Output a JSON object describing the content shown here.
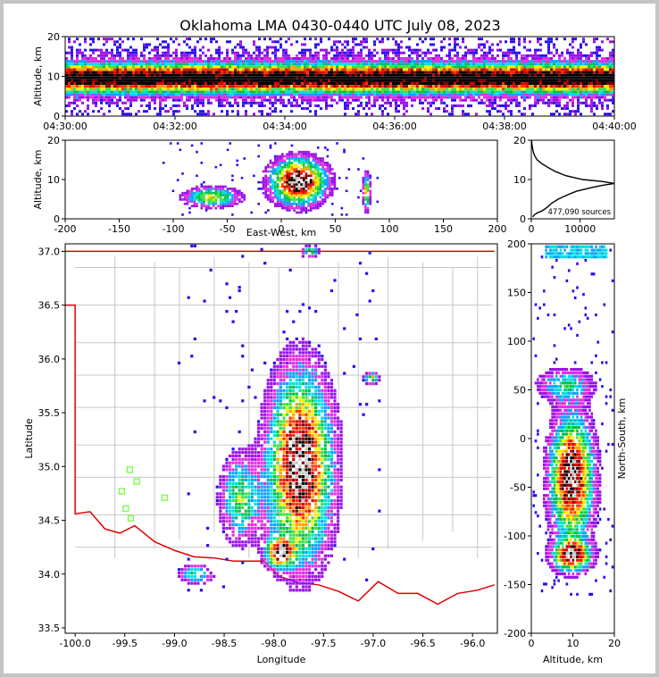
{
  "chart_data": {
    "type": "scatter",
    "title": "Oklahoma LMA 0430-0440 UTC July 08, 2023",
    "colormap": [
      "#2a0ff0",
      "#9a12e8",
      "#e030e0",
      "#12a0ff",
      "#00e0e0",
      "#00c050",
      "#40e040",
      "#f0f000",
      "#ffa000",
      "#ff3000",
      "#e00000",
      "#800000",
      "#000000",
      "#c8c8c8"
    ],
    "time_height": {
      "xlabel": "",
      "ylabel": "Altitude, km",
      "xticks": [
        "04:30:00",
        "04:32:00",
        "04:34:00",
        "04:36:00",
        "04:38:00",
        "04:40:00"
      ],
      "ylim": [
        0,
        20
      ],
      "yticks": [
        0,
        10,
        20
      ]
    },
    "east_west_height": {
      "xlabel": "East-West, km",
      "ylabel": "Altitude, km",
      "xlim": [
        -200,
        200
      ],
      "xticks": [
        -200,
        -150,
        -100,
        -50,
        0,
        50,
        100,
        150,
        200
      ],
      "ylim": [
        0,
        20
      ],
      "yticks": [
        0,
        10,
        20
      ]
    },
    "altitude_histogram": {
      "xlim": [
        0,
        17000
      ],
      "xticks": [
        0,
        10000
      ],
      "ylim": [
        0,
        20
      ],
      "yticks": [
        0,
        10,
        20
      ],
      "sources_label": "477,090 sources",
      "profile": {
        "altitude_km": [
          0.5,
          1.0,
          1.5,
          2.0,
          3.0,
          4.0,
          5.0,
          6.0,
          7.0,
          8.0,
          8.5,
          9.0,
          9.5,
          10.0,
          11.0,
          12.0,
          13.0,
          14.0,
          15.0,
          16.0,
          17.0,
          18.0,
          19.0,
          20.0
        ],
        "count": [
          300,
          600,
          1200,
          2200,
          3300,
          4200,
          5500,
          7200,
          9200,
          12500,
          14500,
          17000,
          14500,
          10500,
          7000,
          5000,
          3500,
          2200,
          1200,
          700,
          400,
          250,
          120,
          40
        ]
      }
    },
    "plan_view": {
      "xlabel": "Longitude",
      "ylabel": "Latitude",
      "xlim": [
        -100.1,
        -95.75
      ],
      "xticks": [
        -100.0,
        -99.5,
        -99.0,
        -98.5,
        -98.0,
        -97.5,
        -97.0,
        -96.5,
        -96.0
      ],
      "ylim": [
        33.45,
        37.07
      ],
      "yticks": [
        33.5,
        34.0,
        34.5,
        35.0,
        35.5,
        36.0,
        36.5,
        37.0
      ],
      "stations": [
        {
          "lon": -99.45,
          "lat": 34.97
        },
        {
          "lon": -99.38,
          "lat": 34.86
        },
        {
          "lon": -99.53,
          "lat": 34.77
        },
        {
          "lon": -99.49,
          "lat": 34.61
        },
        {
          "lon": -99.44,
          "lat": 34.52
        },
        {
          "lon": -99.1,
          "lat": 34.71
        }
      ]
    },
    "north_south_height": {
      "xlabel": "Altitude, km",
      "ylabel": "North-South, km",
      "xlim": [
        0,
        20
      ],
      "xticks": [
        0,
        10,
        20
      ],
      "ylim": [
        -200,
        200
      ],
      "yticks": [
        -200,
        -150,
        -100,
        -50,
        0,
        50,
        100,
        150,
        200
      ]
    }
  }
}
